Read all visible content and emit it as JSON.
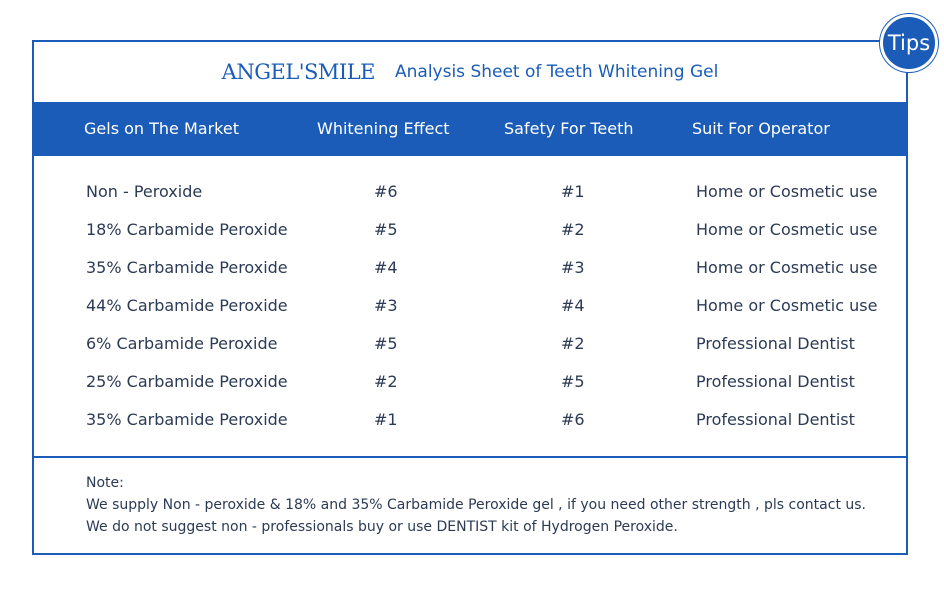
{
  "badge": {
    "label": "Tips"
  },
  "header": {
    "logo": "ANGEL'SMILE",
    "title": "Analysis Sheet of Teeth Whitening Gel"
  },
  "table": {
    "columns": [
      "Gels on The Market",
      "Whitening Effect",
      "Safety For Teeth",
      "Suit For Operator"
    ],
    "rows": [
      [
        "Non - Peroxide",
        "#6",
        "#1",
        "Home or Cosmetic use"
      ],
      [
        "18% Carbamide Peroxide",
        "#5",
        "#2",
        "Home or Cosmetic use"
      ],
      [
        "35% Carbamide Peroxide",
        "#4",
        "#3",
        "Home or Cosmetic use"
      ],
      [
        "44% Carbamide Peroxide",
        "#3",
        "#4",
        "Home or Cosmetic use"
      ],
      [
        "6% Carbamide Peroxide",
        "#5",
        "#2",
        "Professional Dentist"
      ],
      [
        "25% Carbamide Peroxide",
        "#2",
        "#5",
        "Professional Dentist"
      ],
      [
        "35% Carbamide Peroxide",
        "#1",
        "#6",
        "Professional Dentist"
      ]
    ]
  },
  "notes": {
    "heading": "Note:",
    "lines": [
      "We supply Non - peroxide & 18% and 35% Carbamide Peroxide gel , if you need other strength , pls contact us.",
      "We do not suggest non - professionals buy or use DENTIST kit of Hydrogen Peroxide."
    ]
  },
  "colors": {
    "brand_blue": "#1a5cb8",
    "text": "#2b3a55"
  }
}
